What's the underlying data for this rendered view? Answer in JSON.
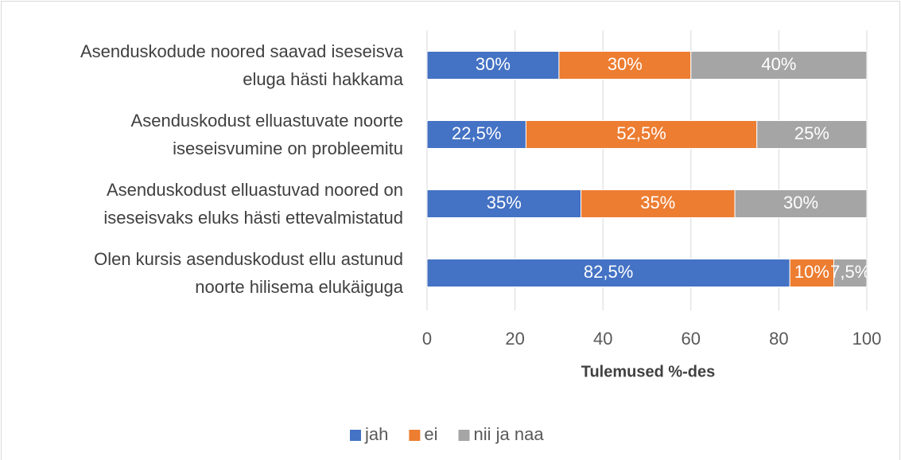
{
  "chart_data": {
    "type": "stacked-barh",
    "categories": [
      "Asenduskodude noored saavad iseseisva\neluga hästi hakkama",
      "Asenduskodust elluastuvate noorte\niseseisvumine on probleemitu",
      "Asenduskodust elluastuvad noored on\niseseisvaks eluks hästi ettevalmistatud",
      "Olen kursis asenduskodust ellu astunud\nnoorte hilisema elukäiguga"
    ],
    "series": [
      {
        "name": "jah",
        "color": "#4472c4",
        "values": [
          30,
          22.5,
          35,
          82.5
        ],
        "value_labels": [
          "30%",
          "22,5%",
          "35%",
          "82,5%"
        ]
      },
      {
        "name": "ei",
        "color": "#ed7d31",
        "values": [
          30,
          52.5,
          35,
          10
        ],
        "value_labels": [
          "30%",
          "52,5%",
          "35%",
          "10%"
        ]
      },
      {
        "name": "nii ja naa",
        "color": "#a5a5a5",
        "values": [
          40,
          25,
          30,
          7.5
        ],
        "value_labels": [
          "40%",
          "25%",
          "30%",
          "7,5%"
        ]
      }
    ],
    "xlabel": "Tulemused %-des",
    "xlim": [
      0,
      100
    ],
    "xticks": [
      0,
      20,
      40,
      60,
      80,
      100
    ],
    "grid": true,
    "legend": "bottom"
  }
}
